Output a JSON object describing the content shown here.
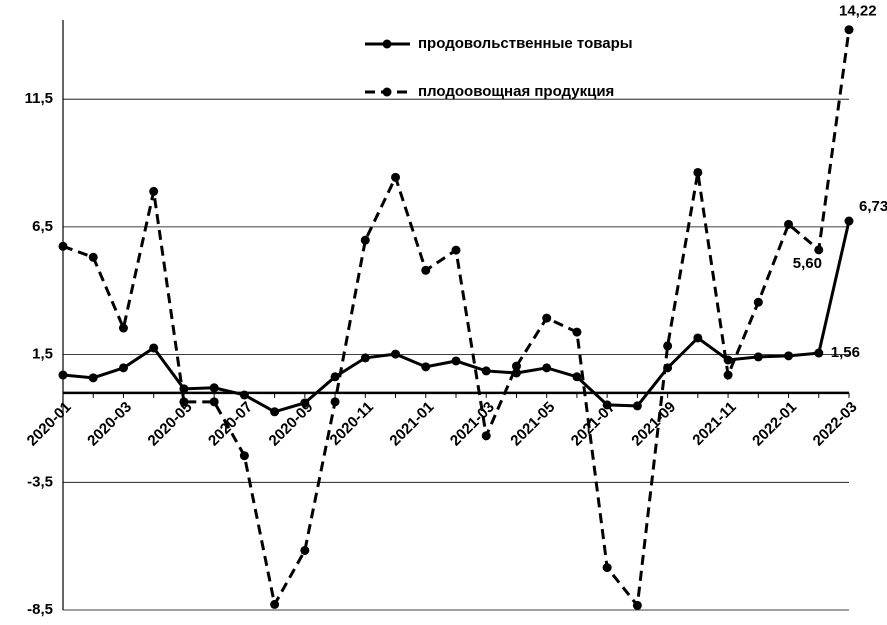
{
  "chart_data": {
    "type": "line",
    "categories": [
      "2020-01",
      null,
      "2020-03",
      null,
      "2020-05",
      null,
      "2020-07",
      null,
      "2020-09",
      null,
      "2020-11",
      null,
      "2021-01",
      null,
      "2021-03",
      null,
      "2021-05",
      null,
      "2021-07",
      null,
      "2021-09",
      null,
      "2021-11",
      null,
      "2022-01",
      null,
      "2022-03"
    ],
    "series": [
      {
        "name": "продовольственные товары",
        "color": "#000000",
        "dash": false,
        "values": [
          0.7,
          0.59,
          0.98,
          1.76,
          0.16,
          0.2,
          -0.08,
          -0.74,
          -0.39,
          0.63,
          1.37,
          1.52,
          1.02,
          1.25,
          0.86,
          0.78,
          0.98,
          0.63,
          -0.47,
          -0.51,
          0.98,
          2.15,
          1.29,
          1.41,
          1.45,
          1.56,
          6.73
        ],
        "value_labels": [
          null,
          null,
          null,
          null,
          null,
          null,
          null,
          null,
          null,
          null,
          null,
          null,
          null,
          null,
          null,
          null,
          null,
          null,
          null,
          null,
          null,
          null,
          null,
          null,
          null,
          "1,56",
          "6,73"
        ]
      },
      {
        "name": "плодоовощная продукция",
        "color": "#000000",
        "dash": true,
        "values": [
          5.74,
          5.31,
          2.54,
          7.89,
          -0.35,
          -0.35,
          -2.46,
          -8.28,
          -6.17,
          -0.35,
          5.98,
          8.44,
          4.8,
          5.59,
          -1.68,
          1.05,
          2.93,
          2.38,
          -6.84,
          -8.32,
          1.84,
          8.63,
          0.7,
          3.55,
          6.6,
          5.6,
          14.22
        ],
        "value_labels": [
          null,
          null,
          null,
          null,
          null,
          null,
          null,
          null,
          null,
          null,
          null,
          null,
          null,
          null,
          null,
          null,
          null,
          null,
          null,
          null,
          null,
          null,
          null,
          null,
          null,
          "5,60",
          "14,22"
        ]
      }
    ],
    "ylim": [
      -8.5,
      14.6
    ],
    "yticks": [
      {
        "value": -8.5,
        "label": "-8,5"
      },
      {
        "value": -3.5,
        "label": "-3,5"
      },
      {
        "value": 1.5,
        "label": "1,5"
      },
      {
        "value": 6.5,
        "label": "6,5"
      },
      {
        "value": 11.5,
        "label": "11,5"
      }
    ],
    "grid": true,
    "legend": "top"
  }
}
